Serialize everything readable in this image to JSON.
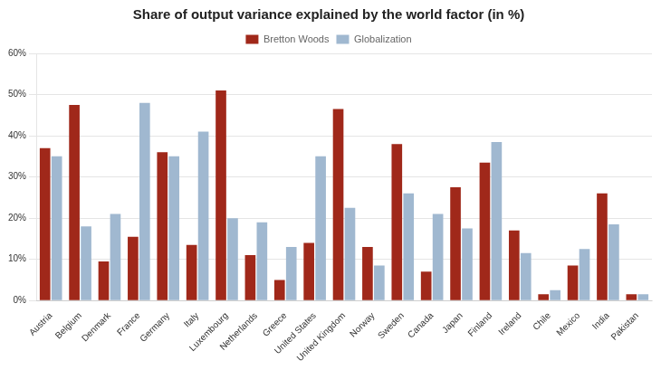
{
  "chart_data": {
    "type": "bar",
    "title": "Share of output variance explained by the world factor (in %)",
    "categories": [
      "Austria",
      "Belgium",
      "Denmark",
      "France",
      "Germany",
      "Italy",
      "Luxembourg",
      "Netherlands",
      "Greece",
      "United States",
      "United Kingdom",
      "Norway",
      "Sweden",
      "Canada",
      "Japan",
      "Finland",
      "Ireland",
      "Chile",
      "Mexico",
      "India",
      "Pakistan"
    ],
    "series": [
      {
        "name": "Bretton Woods",
        "color": "#A0281A",
        "values": [
          37,
          47.5,
          9.5,
          15.5,
          36,
          13.5,
          51,
          11,
          5,
          14,
          46.5,
          13,
          38,
          7,
          27.5,
          33.5,
          17,
          1.5,
          8.5,
          26,
          1.5
        ]
      },
      {
        "name": "Globalization",
        "color": "#A0B8D0",
        "values": [
          35,
          18,
          21,
          48,
          35,
          41,
          20,
          19,
          13,
          35,
          22.5,
          8.5,
          26,
          21,
          17.5,
          38.5,
          11.5,
          2.5,
          12.5,
          18.5,
          1.5
        ]
      }
    ],
    "ylim": [
      0,
      60
    ],
    "yticks": [
      {
        "value": 0,
        "label": "0%"
      },
      {
        "value": 10,
        "label": "10%"
      },
      {
        "value": 20,
        "label": "20%"
      },
      {
        "value": 30,
        "label": "30%"
      },
      {
        "value": 40,
        "label": "40%"
      },
      {
        "value": 50,
        "label": "50%"
      },
      {
        "value": 60,
        "label": "60%"
      }
    ],
    "grid": true,
    "legend": "top"
  }
}
